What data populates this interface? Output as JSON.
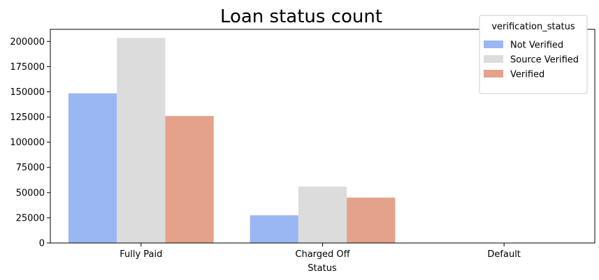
{
  "chart_data": {
    "type": "bar",
    "title": "Loan status count",
    "xlabel": "Status",
    "ylabel": "",
    "categories": [
      "Fully Paid",
      "Charged Off",
      "Default"
    ],
    "series": [
      {
        "name": "Not Verified",
        "values": [
          148500,
          27500,
          0
        ],
        "color": "#9ab7f3"
      },
      {
        "name": "Source Verified",
        "values": [
          203500,
          56000,
          0
        ],
        "color": "#dcdcdc"
      },
      {
        "name": "Verified",
        "values": [
          126000,
          45000,
          0
        ],
        "color": "#e5a28a"
      }
    ],
    "ylim": [
      0,
      212000
    ],
    "yticks": [
      0,
      25000,
      50000,
      75000,
      100000,
      125000,
      150000,
      175000,
      200000
    ],
    "legend": {
      "title": "verification_status",
      "position": "top-right"
    },
    "grid": false
  }
}
